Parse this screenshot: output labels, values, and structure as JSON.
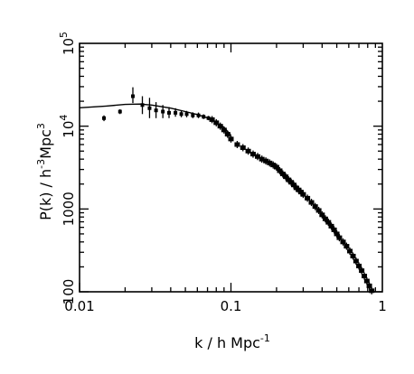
{
  "chart_data": {
    "type": "scatter",
    "title": "",
    "xlabel": "k / h Mpc",
    "xlabel_sup": "-1",
    "ylabel_parts": [
      "P(k) / h",
      "-3",
      "Mpc",
      "3"
    ],
    "xscale": "log",
    "yscale": "log",
    "xlim": [
      0.01,
      1
    ],
    "ylim": [
      100,
      100000
    ],
    "x_ticks": [
      {
        "value": 0.01,
        "label": "0.01"
      },
      {
        "value": 0.1,
        "label": "0.1"
      },
      {
        "value": 1,
        "label": "1"
      }
    ],
    "y_ticks": [
      {
        "value": 100,
        "base": "100",
        "sup": ""
      },
      {
        "value": 1000,
        "base": "1000",
        "sup": ""
      },
      {
        "value": 10000,
        "base": "10",
        "sup": "4"
      },
      {
        "value": 100000,
        "base": "10",
        "sup": "5"
      }
    ],
    "grid": false,
    "legend": "none",
    "series": [
      {
        "kind": "points-with-error-bars",
        "points": [
          {
            "x": 0.0145,
            "y": 12500,
            "err": [
              11500,
              13500
            ]
          },
          {
            "x": 0.0185,
            "y": 15000,
            "err": [
              14000,
              16000
            ]
          },
          {
            "x": 0.0225,
            "y": 23000,
            "err": [
              19000,
              29500
            ]
          },
          {
            "x": 0.026,
            "y": 18000,
            "err": [
              14000,
              23000
            ]
          },
          {
            "x": 0.029,
            "y": 16500,
            "err": [
              12500,
              22000
            ]
          },
          {
            "x": 0.032,
            "y": 15500,
            "err": [
              12500,
              19500
            ]
          },
          {
            "x": 0.0355,
            "y": 15000,
            "err": [
              12500,
              18000
            ]
          },
          {
            "x": 0.039,
            "y": 14500,
            "err": [
              12500,
              17000
            ]
          },
          {
            "x": 0.043,
            "y": 14500,
            "err": [
              13000,
              16500
            ]
          },
          {
            "x": 0.047,
            "y": 14000,
            "err": [
              12800,
              15500
            ]
          },
          {
            "x": 0.051,
            "y": 14000,
            "err": [
              12800,
              15300
            ]
          },
          {
            "x": 0.056,
            "y": 13500,
            "err": [
              12500,
              14700
            ]
          },
          {
            "x": 0.061,
            "y": 13500,
            "err": [
              12500,
              14600
            ]
          },
          {
            "x": 0.066,
            "y": 13000,
            "err": [
              12200,
              13900
            ]
          },
          {
            "x": 0.071,
            "y": 12500,
            "err": [
              11800,
              13300
            ]
          }
        ]
      },
      {
        "kind": "dense-points",
        "points": [
          [
            0.075,
            12000
          ],
          [
            0.08,
            11000
          ],
          [
            0.085,
            10000
          ],
          [
            0.09,
            9000
          ],
          [
            0.095,
            8000
          ],
          [
            0.1,
            7000
          ],
          [
            0.11,
            6000
          ],
          [
            0.12,
            5500
          ],
          [
            0.13,
            5000
          ],
          [
            0.14,
            4600
          ],
          [
            0.15,
            4300
          ],
          [
            0.16,
            4000
          ],
          [
            0.17,
            3800
          ],
          [
            0.18,
            3600
          ],
          [
            0.19,
            3400
          ],
          [
            0.2,
            3200
          ],
          [
            0.21,
            2900
          ],
          [
            0.22,
            2650
          ],
          [
            0.23,
            2450
          ],
          [
            0.24,
            2250
          ],
          [
            0.25,
            2100
          ],
          [
            0.26,
            1950
          ],
          [
            0.27,
            1800
          ],
          [
            0.28,
            1700
          ],
          [
            0.29,
            1600
          ],
          [
            0.3,
            1500
          ],
          [
            0.32,
            1350
          ],
          [
            0.34,
            1200
          ],
          [
            0.36,
            1070
          ],
          [
            0.38,
            960
          ],
          [
            0.4,
            850
          ],
          [
            0.42,
            760
          ],
          [
            0.44,
            690
          ],
          [
            0.46,
            620
          ],
          [
            0.48,
            560
          ],
          [
            0.5,
            500
          ],
          [
            0.52,
            450
          ],
          [
            0.55,
            400
          ],
          [
            0.58,
            355
          ],
          [
            0.61,
            310
          ],
          [
            0.64,
            270
          ],
          [
            0.67,
            235
          ],
          [
            0.7,
            205
          ],
          [
            0.73,
            180
          ],
          [
            0.76,
            155
          ],
          [
            0.79,
            135
          ],
          [
            0.82,
            118
          ],
          [
            0.85,
            103
          ]
        ]
      },
      {
        "kind": "model-curve",
        "points": [
          [
            0.01,
            16700
          ],
          [
            0.015,
            17500
          ],
          [
            0.02,
            18300
          ],
          [
            0.025,
            18500
          ],
          [
            0.03,
            18000
          ],
          [
            0.04,
            16500
          ],
          [
            0.05,
            15000
          ],
          [
            0.06,
            13800
          ],
          [
            0.07,
            12600
          ],
          [
            0.08,
            11100
          ],
          [
            0.09,
            9700
          ],
          [
            0.1,
            7800
          ]
        ]
      }
    ]
  }
}
